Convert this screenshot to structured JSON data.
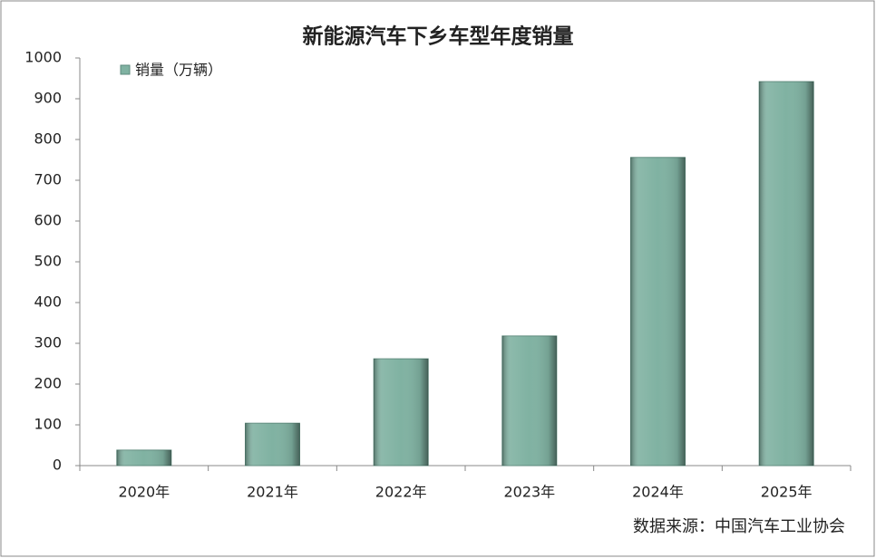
{
  "chart_data": {
    "type": "bar",
    "title": "新能源汽车下乡车型年度销量",
    "categories": [
      "2020年",
      "2021年",
      "2022年",
      "2023年",
      "2024年",
      "2025年"
    ],
    "series": [
      {
        "name": "销量（万辆）",
        "color": "#80b2a2",
        "values": [
          38,
          104,
          262,
          318,
          756,
          942
        ]
      }
    ],
    "ylim": [
      0,
      1000
    ],
    "yticks": [
      0,
      100,
      200,
      300,
      400,
      500,
      600,
      700,
      800,
      900,
      1000
    ],
    "grid": false,
    "legend": "top-left",
    "source": "数据来源：中国汽车工业协会"
  }
}
